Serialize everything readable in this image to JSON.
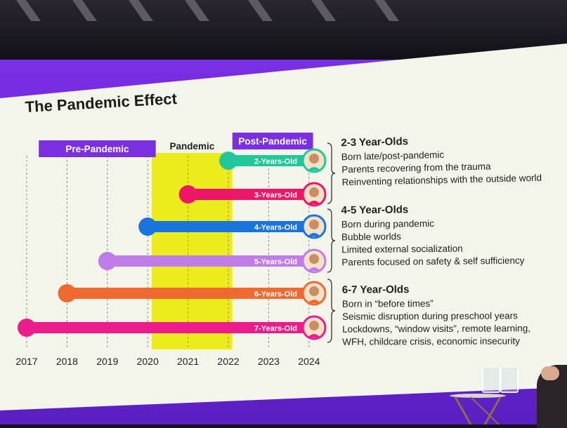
{
  "slide": {
    "title": "The Pandemic Effect"
  },
  "eras": [
    {
      "label": "Pre-Pandemic",
      "color": "#7b2fe0",
      "range": [
        2017.3,
        2020.2
      ]
    },
    {
      "label": "Pandemic",
      "color": "#ecec1c",
      "range": [
        2020.1,
        2022.1
      ]
    },
    {
      "label": "Post-Pandemic",
      "color": "#7b2fe0",
      "range": [
        2022.1,
        2024.1
      ]
    }
  ],
  "years": [
    "2017",
    "2018",
    "2019",
    "2020",
    "2021",
    "2022",
    "2023",
    "2024"
  ],
  "bars": [
    {
      "label": "2-Years-Old",
      "color": "#1fc79a",
      "start": 2022.0,
      "icon": "child-photo-icon"
    },
    {
      "label": "3-Years-Old",
      "color": "#ee1666",
      "start": 2021.0,
      "icon": "child-photo-icon"
    },
    {
      "label": "4-Years-Old",
      "color": "#1a74de",
      "start": 2020.0,
      "icon": "child-photo-icon"
    },
    {
      "label": "5-Years-Old",
      "color": "#c07ce8",
      "start": 2019.0,
      "icon": "child-photo-icon"
    },
    {
      "label": "6-Years-Old",
      "color": "#f06a30",
      "start": 2018.0,
      "icon": "child-photo-icon"
    },
    {
      "label": "7-Years-Old",
      "color": "#ec1c8c",
      "start": 2017.0,
      "icon": "child-photo-icon"
    }
  ],
  "groups": [
    {
      "heading": "2-3 Year-Olds",
      "lines": [
        "Born late/post-pandemic",
        "Parents recovering from the trauma",
        "Reinventing relationships with the outside world"
      ]
    },
    {
      "heading": "4-5 Year-Olds",
      "lines": [
        "Born during pandemic",
        "Bubble worlds",
        "Limited external socialization",
        "Parents focused on safety & self sufficiency"
      ]
    },
    {
      "heading": "6-7 Year-Olds",
      "lines": [
        "Born in “before times”",
        "Seismic disruption during preschool years",
        "Lockdowns, “window visits”, remote learning,",
        "WFH, childcare crisis, economic insecurity"
      ]
    }
  ],
  "colors": {
    "frame": "#6a26d8",
    "slide_bg": "#f3f5ea",
    "pandemic_band": "#ecec1c"
  }
}
